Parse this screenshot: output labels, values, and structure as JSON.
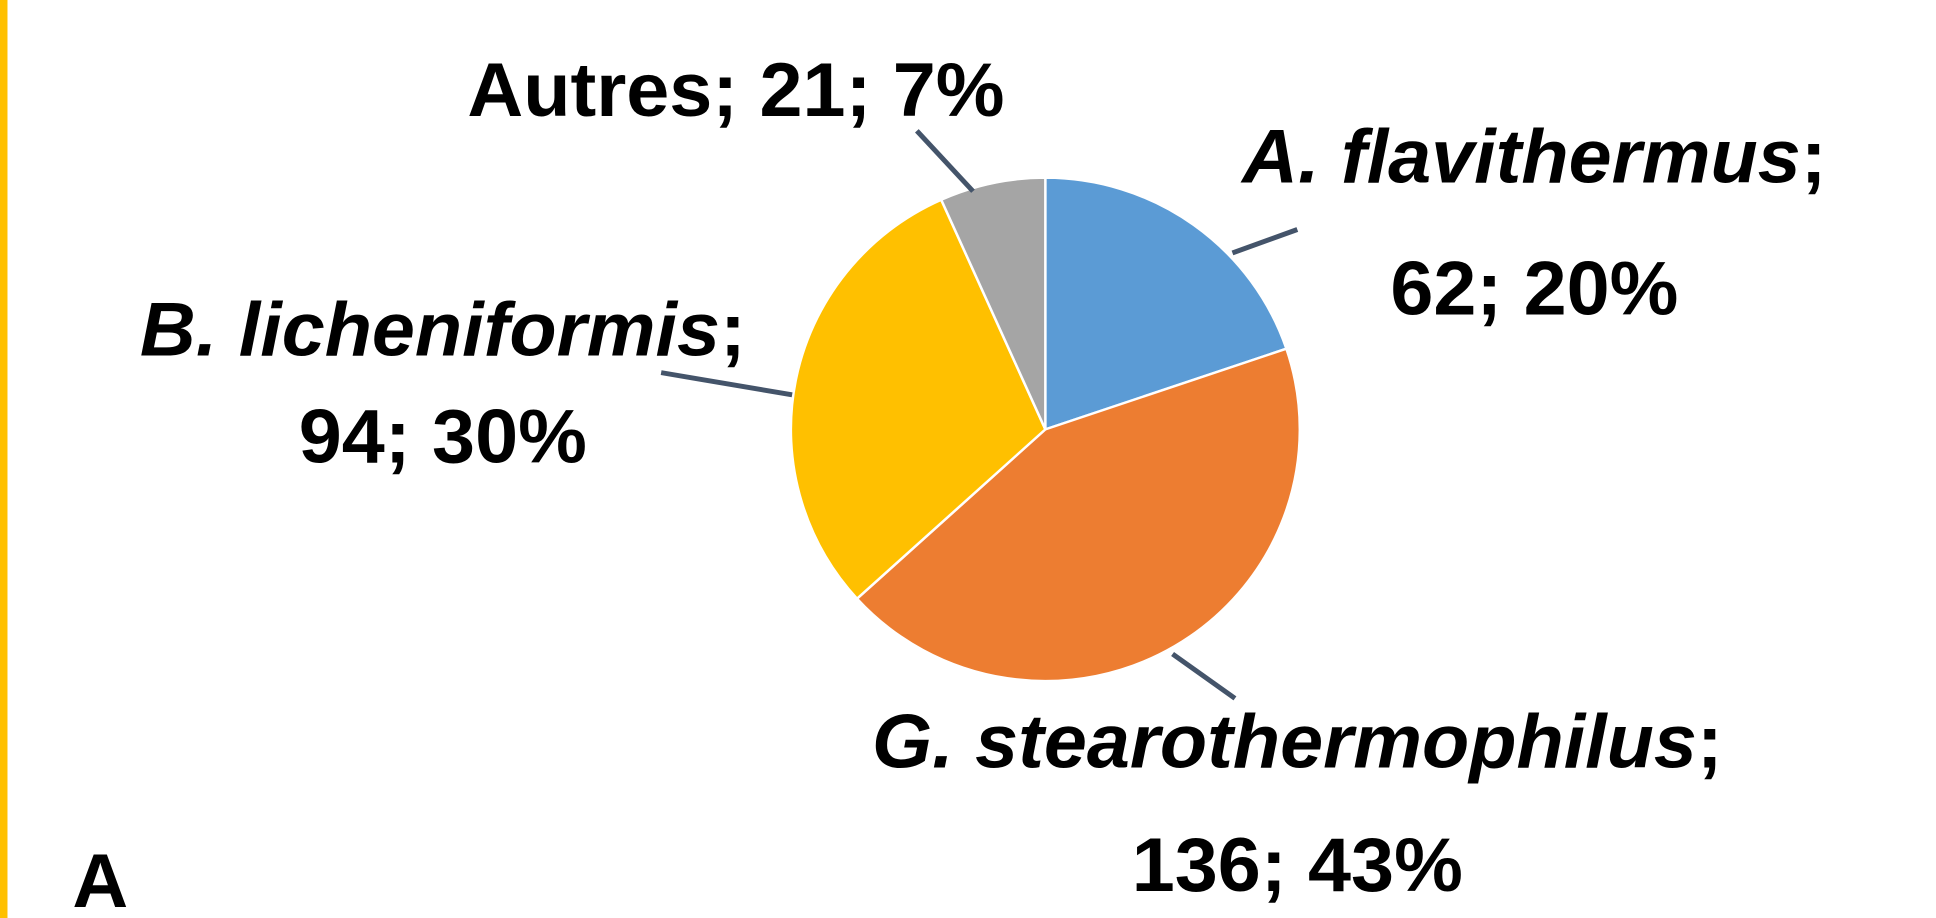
{
  "chart_data": {
    "type": "pie",
    "categories": [
      "A. flavithermus",
      "G. stearothermophilus",
      "B. licheniformis",
      "Autres"
    ],
    "values": [
      62,
      136,
      94,
      21
    ],
    "value_labels": [
      "20%",
      "43%",
      "30%",
      "7%"
    ],
    "label_separator": "; ",
    "colors": [
      "#5b9bd5",
      "#ed7d31",
      "#ffc000",
      "#a5a5a5"
    ],
    "panel_label": "A"
  }
}
